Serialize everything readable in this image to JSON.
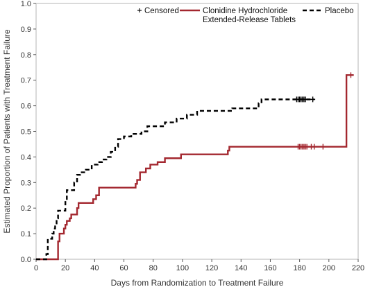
{
  "chart_data": {
    "type": "line",
    "title": "",
    "xlabel": "Days from Randomization to Treatment Failure",
    "ylabel": "Estimated Proportion of Patients with Treatment Failure",
    "xlim": [
      0,
      220
    ],
    "ylim": [
      0.0,
      1.0
    ],
    "xticks": [
      "0",
      "20",
      "40",
      "60",
      "80",
      "100",
      "120",
      "140",
      "160",
      "180",
      "200",
      "220"
    ],
    "yticks": [
      "0.0",
      "0.1",
      "0.2",
      "0.3",
      "0.4",
      "0.5",
      "0.6",
      "0.7",
      "0.8",
      "0.9",
      "1.0"
    ],
    "grid": false,
    "legend_position": "top",
    "legend": {
      "censored_label": "Censored",
      "clonidine_label_line1": "Clonidine Hydrochloride",
      "clonidine_label_line2": "Extended-Release Tablets",
      "placebo_label": "Placebo"
    },
    "series": [
      {
        "name": "Clonidine Hydrochloride Extended-Release Tablets",
        "style": "solid",
        "color": "#a3272f",
        "steps": [
          [
            0,
            0.0
          ],
          [
            15,
            0.0
          ],
          [
            15,
            0.07
          ],
          [
            16,
            0.07
          ],
          [
            16,
            0.1
          ],
          [
            19,
            0.1
          ],
          [
            19,
            0.12
          ],
          [
            20,
            0.12
          ],
          [
            20,
            0.135
          ],
          [
            21,
            0.135
          ],
          [
            21,
            0.15
          ],
          [
            23,
            0.15
          ],
          [
            23,
            0.16
          ],
          [
            24,
            0.16
          ],
          [
            24,
            0.175
          ],
          [
            28,
            0.175
          ],
          [
            28,
            0.2
          ],
          [
            29,
            0.2
          ],
          [
            29,
            0.22
          ],
          [
            39,
            0.22
          ],
          [
            39,
            0.235
          ],
          [
            41,
            0.235
          ],
          [
            41,
            0.25
          ],
          [
            43,
            0.25
          ],
          [
            43,
            0.28
          ],
          [
            68,
            0.28
          ],
          [
            68,
            0.295
          ],
          [
            69,
            0.295
          ],
          [
            69,
            0.31
          ],
          [
            71,
            0.31
          ],
          [
            71,
            0.34
          ],
          [
            75,
            0.34
          ],
          [
            75,
            0.355
          ],
          [
            78,
            0.355
          ],
          [
            78,
            0.37
          ],
          [
            83,
            0.37
          ],
          [
            83,
            0.38
          ],
          [
            88,
            0.38
          ],
          [
            88,
            0.395
          ],
          [
            99,
            0.395
          ],
          [
            99,
            0.41
          ],
          [
            131,
            0.41
          ],
          [
            131,
            0.425
          ],
          [
            132,
            0.425
          ],
          [
            132,
            0.44
          ],
          [
            212,
            0.44
          ],
          [
            212,
            0.72
          ],
          [
            217,
            0.72
          ]
        ],
        "censored": [
          [
            179,
            0.44
          ],
          [
            180,
            0.44
          ],
          [
            181,
            0.44
          ],
          [
            182,
            0.44
          ],
          [
            183,
            0.44
          ],
          [
            184,
            0.44
          ],
          [
            185,
            0.44
          ],
          [
            188,
            0.44
          ],
          [
            190,
            0.44
          ],
          [
            196,
            0.44
          ],
          [
            215,
            0.72
          ]
        ]
      },
      {
        "name": "Placebo",
        "style": "dashed",
        "color": "#000000",
        "steps": [
          [
            0,
            0.0
          ],
          [
            7,
            0.0
          ],
          [
            7,
            0.02
          ],
          [
            8,
            0.02
          ],
          [
            8,
            0.08
          ],
          [
            11,
            0.08
          ],
          [
            11,
            0.1
          ],
          [
            12,
            0.1
          ],
          [
            12,
            0.12
          ],
          [
            13,
            0.12
          ],
          [
            13,
            0.14
          ],
          [
            14,
            0.14
          ],
          [
            14,
            0.16
          ],
          [
            15,
            0.16
          ],
          [
            15,
            0.19
          ],
          [
            20,
            0.19
          ],
          [
            20,
            0.23
          ],
          [
            21,
            0.23
          ],
          [
            21,
            0.27
          ],
          [
            26,
            0.27
          ],
          [
            26,
            0.3
          ],
          [
            28,
            0.3
          ],
          [
            28,
            0.33
          ],
          [
            30,
            0.33
          ],
          [
            30,
            0.34
          ],
          [
            34,
            0.34
          ],
          [
            34,
            0.35
          ],
          [
            38,
            0.35
          ],
          [
            38,
            0.37
          ],
          [
            42,
            0.37
          ],
          [
            42,
            0.38
          ],
          [
            45,
            0.38
          ],
          [
            45,
            0.39
          ],
          [
            48,
            0.39
          ],
          [
            48,
            0.4
          ],
          [
            51,
            0.4
          ],
          [
            51,
            0.42
          ],
          [
            54,
            0.42
          ],
          [
            54,
            0.44
          ],
          [
            56,
            0.44
          ],
          [
            56,
            0.47
          ],
          [
            60,
            0.47
          ],
          [
            60,
            0.48
          ],
          [
            65,
            0.48
          ],
          [
            65,
            0.49
          ],
          [
            72,
            0.49
          ],
          [
            72,
            0.5
          ],
          [
            76,
            0.5
          ],
          [
            76,
            0.52
          ],
          [
            88,
            0.52
          ],
          [
            88,
            0.535
          ],
          [
            96,
            0.535
          ],
          [
            96,
            0.55
          ],
          [
            103,
            0.55
          ],
          [
            103,
            0.565
          ],
          [
            110,
            0.565
          ],
          [
            110,
            0.58
          ],
          [
            134,
            0.58
          ],
          [
            134,
            0.59
          ],
          [
            152,
            0.59
          ],
          [
            152,
            0.61
          ],
          [
            154,
            0.61
          ],
          [
            154,
            0.625
          ],
          [
            190,
            0.625
          ]
        ],
        "censored": [
          [
            178,
            0.625
          ],
          [
            179,
            0.625
          ],
          [
            180,
            0.625
          ],
          [
            181,
            0.625
          ],
          [
            182,
            0.625
          ],
          [
            183,
            0.625
          ],
          [
            184,
            0.625
          ],
          [
            189,
            0.625
          ]
        ]
      }
    ]
  }
}
